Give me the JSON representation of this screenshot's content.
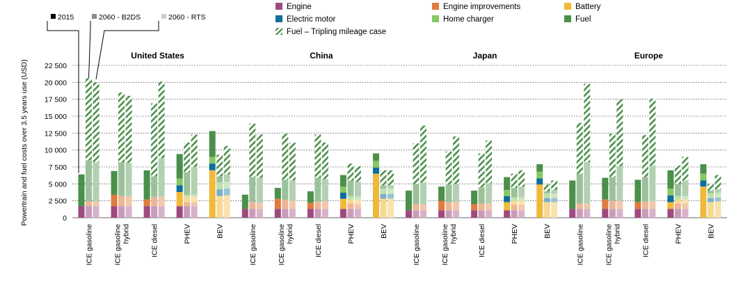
{
  "chart_data": {
    "type": "bar",
    "stacked": true,
    "ylabel": "Powertrain and fuel costs over 3.5 years use (USD)",
    "ylim": [
      0,
      22500
    ],
    "yticks": [
      0,
      2500,
      5000,
      7500,
      10000,
      12500,
      15000,
      17500,
      20000,
      22500
    ],
    "ytick_labels": [
      "0",
      "2 500",
      "5 000",
      "7 500",
      "10 000",
      "12 500",
      "15 000",
      "17 500",
      "20 000",
      "22 500"
    ],
    "grid": "horizontal-dotted",
    "scenarios": [
      {
        "key": "s2015",
        "label": "2015",
        "color": "#000000"
      },
      {
        "key": "b2ds",
        "label": "2060 - B2DS",
        "color": "#8c8c8c"
      },
      {
        "key": "rts",
        "label": "2060 - RTS",
        "color": "#cfcfcf"
      }
    ],
    "components": [
      {
        "key": "engine",
        "label": "Engine",
        "color": "#9e4a80"
      },
      {
        "key": "engine_imp",
        "label": "Engine improvements",
        "color": "#e07a3e"
      },
      {
        "key": "battery",
        "label": "Battery",
        "color": "#f0b93b"
      },
      {
        "key": "motor",
        "label": "Electric motor",
        "color": "#0e6e9c"
      },
      {
        "key": "charger",
        "label": "Home charger",
        "color": "#88c664"
      },
      {
        "key": "fuel",
        "label": "Fuel",
        "color": "#4a8f4a"
      },
      {
        "key": "triple",
        "label": "Fuel – Tripling mileage case",
        "color": "#4a8f4a",
        "pattern": "hatch"
      }
    ],
    "regions": [
      {
        "name": "United States",
        "categories": [
          {
            "label": [
              "ICE gasoline"
            ],
            "bars": [
              {
                "engine": 1700,
                "engine_imp": 0,
                "battery": 0,
                "motor": 0,
                "charger": 0,
                "fuel": 4700,
                "triple": 0
              },
              {
                "engine": 1700,
                "engine_imp": 700,
                "battery": 0,
                "motor": 0,
                "charger": 0,
                "fuel": 6100,
                "triple": 12100
              },
              {
                "engine": 1700,
                "engine_imp": 700,
                "battery": 0,
                "motor": 0,
                "charger": 0,
                "fuel": 5800,
                "triple": 11800
              }
            ]
          },
          {
            "label": [
              "ICE gasoline",
              "hybrid"
            ],
            "bars": [
              {
                "engine": 1700,
                "engine_imp": 1700,
                "battery": 0,
                "motor": 0,
                "charger": 0,
                "fuel": 3500,
                "triple": 0
              },
              {
                "engine": 1700,
                "engine_imp": 1500,
                "battery": 0,
                "motor": 0,
                "charger": 0,
                "fuel": 5000,
                "triple": 10300
              },
              {
                "engine": 1700,
                "engine_imp": 1500,
                "battery": 0,
                "motor": 0,
                "charger": 0,
                "fuel": 4900,
                "triple": 9900
              }
            ]
          },
          {
            "label": [
              "ICE diesel"
            ],
            "bars": [
              {
                "engine": 1700,
                "engine_imp": 1000,
                "battery": 0,
                "motor": 0,
                "charger": 0,
                "fuel": 4300,
                "triple": 0
              },
              {
                "engine": 1700,
                "engine_imp": 1400,
                "battery": 0,
                "motor": 0,
                "charger": 0,
                "fuel": 3000,
                "triple": 10800
              },
              {
                "engine": 1700,
                "engine_imp": 1400,
                "battery": 0,
                "motor": 0,
                "charger": 0,
                "fuel": 5700,
                "triple": 11300
              }
            ]
          },
          {
            "label": [
              "PHEV"
            ],
            "bars": [
              {
                "engine": 1700,
                "engine_imp": 0,
                "battery": 2100,
                "motor": 1000,
                "charger": 1000,
                "fuel": 3600,
                "triple": 0
              },
              {
                "engine": 1700,
                "engine_imp": 600,
                "battery": 800,
                "motor": 0,
                "charger": 300,
                "fuel": 3300,
                "triple": 4400
              },
              {
                "engine": 1700,
                "engine_imp": 600,
                "battery": 800,
                "motor": 0,
                "charger": 300,
                "fuel": 4100,
                "triple": 4800
              }
            ]
          },
          {
            "label": [
              "BEV"
            ],
            "bars": [
              {
                "engine": 0,
                "engine_imp": 0,
                "battery": 7000,
                "motor": 1000,
                "charger": 1000,
                "fuel": 3800,
                "triple": 0
              },
              {
                "engine": 0,
                "engine_imp": 0,
                "battery": 3200,
                "motor": 1000,
                "charger": 1000,
                "fuel": 900,
                "triple": 3200
              },
              {
                "engine": 0,
                "engine_imp": 0,
                "battery": 3300,
                "motor": 1000,
                "charger": 1000,
                "fuel": 1100,
                "triple": 4200
              }
            ]
          }
        ]
      },
      {
        "name": "China",
        "categories": [
          {
            "label": [
              "ICE gasoline"
            ],
            "bars": [
              {
                "engine": 1300,
                "engine_imp": 0,
                "battery": 0,
                "motor": 0,
                "charger": 0,
                "fuel": 2100,
                "triple": 0
              },
              {
                "engine": 1300,
                "engine_imp": 1000,
                "battery": 0,
                "motor": 0,
                "charger": 0,
                "fuel": 3700,
                "triple": 7900
              },
              {
                "engine": 1300,
                "engine_imp": 900,
                "battery": 0,
                "motor": 0,
                "charger": 0,
                "fuel": 3700,
                "triple": 6400
              }
            ]
          },
          {
            "label": [
              "ICE gasoline",
              "hybrid"
            ],
            "bars": [
              {
                "engine": 1300,
                "engine_imp": 1500,
                "battery": 0,
                "motor": 0,
                "charger": 0,
                "fuel": 1600,
                "triple": 0
              },
              {
                "engine": 1300,
                "engine_imp": 1300,
                "battery": 0,
                "motor": 0,
                "charger": 0,
                "fuel": 3000,
                "triple": 6800
              },
              {
                "engine": 1300,
                "engine_imp": 1200,
                "battery": 0,
                "motor": 0,
                "charger": 0,
                "fuel": 3000,
                "triple": 5600
              }
            ]
          },
          {
            "label": [
              "ICE diesel"
            ],
            "bars": [
              {
                "engine": 1300,
                "engine_imp": 900,
                "battery": 0,
                "motor": 0,
                "charger": 0,
                "fuel": 1700,
                "triple": 0
              },
              {
                "engine": 1300,
                "engine_imp": 1100,
                "battery": 0,
                "motor": 0,
                "charger": 0,
                "fuel": 3500,
                "triple": 6400
              },
              {
                "engine": 1300,
                "engine_imp": 1100,
                "battery": 0,
                "motor": 0,
                "charger": 0,
                "fuel": 3300,
                "triple": 5400
              }
            ]
          },
          {
            "label": [
              "PHEV"
            ],
            "bars": [
              {
                "engine": 1300,
                "engine_imp": 0,
                "battery": 1500,
                "motor": 900,
                "charger": 900,
                "fuel": 1700,
                "triple": 0
              },
              {
                "engine": 1300,
                "engine_imp": 800,
                "battery": 600,
                "motor": 0,
                "charger": 500,
                "fuel": 2300,
                "triple": 2500
              },
              {
                "engine": 1300,
                "engine_imp": 700,
                "battery": 600,
                "motor": 0,
                "charger": 500,
                "fuel": 2200,
                "triple": 2300
              }
            ]
          },
          {
            "label": [
              "BEV"
            ],
            "bars": [
              {
                "engine": 0,
                "engine_imp": 0,
                "battery": 6500,
                "motor": 900,
                "charger": 1000,
                "fuel": 1100,
                "triple": 0
              },
              {
                "engine": 0,
                "engine_imp": 0,
                "battery": 2800,
                "motor": 700,
                "charger": 800,
                "fuel": 500,
                "triple": 2200
              },
              {
                "engine": 0,
                "engine_imp": 0,
                "battery": 2800,
                "motor": 700,
                "charger": 800,
                "fuel": 500,
                "triple": 2200
              }
            ]
          }
        ]
      },
      {
        "name": "Japan",
        "categories": [
          {
            "label": [
              "ICE gasoline"
            ],
            "bars": [
              {
                "engine": 1100,
                "engine_imp": 0,
                "battery": 0,
                "motor": 0,
                "charger": 0,
                "fuel": 2900,
                "triple": 0
              },
              {
                "engine": 1100,
                "engine_imp": 900,
                "battery": 0,
                "motor": 0,
                "charger": 0,
                "fuel": 3000,
                "triple": 6000
              },
              {
                "engine": 1100,
                "engine_imp": 900,
                "battery": 0,
                "motor": 0,
                "charger": 0,
                "fuel": 3200,
                "triple": 8400
              }
            ]
          },
          {
            "label": [
              "ICE gasoline",
              "hybrid"
            ],
            "bars": [
              {
                "engine": 1100,
                "engine_imp": 1400,
                "battery": 0,
                "motor": 0,
                "charger": 0,
                "fuel": 2100,
                "triple": 0
              },
              {
                "engine": 1100,
                "engine_imp": 1200,
                "battery": 0,
                "motor": 0,
                "charger": 0,
                "fuel": 2600,
                "triple": 4900
              },
              {
                "engine": 1100,
                "engine_imp": 1200,
                "battery": 0,
                "motor": 0,
                "charger": 0,
                "fuel": 2700,
                "triple": 7000
              }
            ]
          },
          {
            "label": [
              "ICE diesel"
            ],
            "bars": [
              {
                "engine": 1100,
                "engine_imp": 900,
                "battery": 0,
                "motor": 0,
                "charger": 0,
                "fuel": 2000,
                "triple": 0
              },
              {
                "engine": 1100,
                "engine_imp": 1000,
                "battery": 0,
                "motor": 0,
                "charger": 0,
                "fuel": 2400,
                "triple": 5000
              },
              {
                "engine": 1100,
                "engine_imp": 1000,
                "battery": 0,
                "motor": 0,
                "charger": 0,
                "fuel": 3000,
                "triple": 6300
              }
            ]
          },
          {
            "label": [
              "PHEV"
            ],
            "bars": [
              {
                "engine": 1100,
                "engine_imp": 0,
                "battery": 1200,
                "motor": 900,
                "charger": 900,
                "fuel": 1900,
                "triple": 0
              },
              {
                "engine": 1100,
                "engine_imp": 800,
                "battery": 600,
                "motor": 0,
                "charger": 500,
                "fuel": 1400,
                "triple": 2100
              },
              {
                "engine": 1100,
                "engine_imp": 800,
                "battery": 600,
                "motor": 0,
                "charger": 500,
                "fuel": 1600,
                "triple": 2400
              }
            ]
          },
          {
            "label": [
              "BEV"
            ],
            "bars": [
              {
                "engine": 0,
                "engine_imp": 0,
                "battery": 4900,
                "motor": 900,
                "charger": 1000,
                "fuel": 1100,
                "triple": 0
              },
              {
                "engine": 0,
                "engine_imp": 0,
                "battery": 2300,
                "motor": 600,
                "charger": 700,
                "fuel": 300,
                "triple": 1000
              },
              {
                "engine": 0,
                "engine_imp": 0,
                "battery": 2300,
                "motor": 600,
                "charger": 700,
                "fuel": 500,
                "triple": 1400
              }
            ]
          }
        ]
      },
      {
        "name": "Europe",
        "categories": [
          {
            "label": [
              "ICE gasoline"
            ],
            "bars": [
              {
                "engine": 1300,
                "engine_imp": 0,
                "battery": 0,
                "motor": 0,
                "charger": 0,
                "fuel": 4200,
                "triple": 0
              },
              {
                "engine": 1300,
                "engine_imp": 800,
                "battery": 0,
                "motor": 0,
                "charger": 0,
                "fuel": 4400,
                "triple": 7500
              },
              {
                "engine": 1300,
                "engine_imp": 800,
                "battery": 0,
                "motor": 0,
                "charger": 0,
                "fuel": 6100,
                "triple": 11600
              }
            ]
          },
          {
            "label": [
              "ICE gasoline",
              "hybrid"
            ],
            "bars": [
              {
                "engine": 1300,
                "engine_imp": 1400,
                "battery": 0,
                "motor": 0,
                "charger": 0,
                "fuel": 3200,
                "triple": 0
              },
              {
                "engine": 1300,
                "engine_imp": 1200,
                "battery": 0,
                "motor": 0,
                "charger": 0,
                "fuel": 3500,
                "triple": 6400
              },
              {
                "engine": 1300,
                "engine_imp": 1200,
                "battery": 0,
                "motor": 0,
                "charger": 0,
                "fuel": 5100,
                "triple": 9900
              }
            ]
          },
          {
            "label": [
              "ICE diesel"
            ],
            "bars": [
              {
                "engine": 1300,
                "engine_imp": 1000,
                "battery": 0,
                "motor": 0,
                "charger": 0,
                "fuel": 3300,
                "triple": 0
              },
              {
                "engine": 1300,
                "engine_imp": 1100,
                "battery": 0,
                "motor": 0,
                "charger": 0,
                "fuel": 3600,
                "triple": 6200
              },
              {
                "engine": 1300,
                "engine_imp": 1100,
                "battery": 0,
                "motor": 0,
                "charger": 0,
                "fuel": 5300,
                "triple": 9900
              }
            ]
          },
          {
            "label": [
              "PHEV"
            ],
            "bars": [
              {
                "engine": 1300,
                "engine_imp": 0,
                "battery": 1000,
                "motor": 1000,
                "charger": 1000,
                "fuel": 2700,
                "triple": 0
              },
              {
                "engine": 1300,
                "engine_imp": 800,
                "battery": 600,
                "motor": 0,
                "charger": 500,
                "fuel": 1800,
                "triple": 2700
              },
              {
                "engine": 1300,
                "engine_imp": 800,
                "battery": 600,
                "motor": 0,
                "charger": 500,
                "fuel": 2300,
                "triple": 3500
              }
            ]
          },
          {
            "label": [
              "BEV"
            ],
            "bars": [
              {
                "engine": 0,
                "engine_imp": 0,
                "battery": 4600,
                "motor": 900,
                "charger": 1000,
                "fuel": 1400,
                "triple": 0
              },
              {
                "engine": 0,
                "engine_imp": 0,
                "battery": 2300,
                "motor": 600,
                "charger": 700,
                "fuel": 400,
                "triple": 1000
              },
              {
                "engine": 0,
                "engine_imp": 0,
                "battery": 2400,
                "motor": 600,
                "charger": 700,
                "fuel": 500,
                "triple": 2100
              }
            ]
          }
        ]
      }
    ]
  }
}
